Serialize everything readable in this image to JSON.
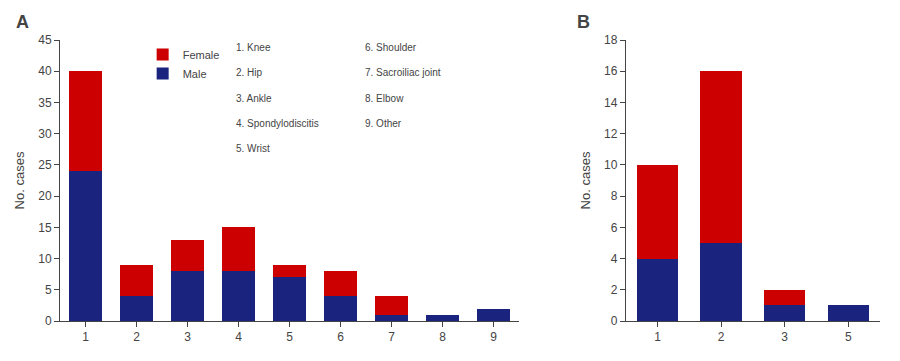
{
  "chart_data": [
    {
      "type": "bar",
      "stacked": true,
      "title": "A",
      "ylabel": "No. cases",
      "categories": [
        1,
        2,
        3,
        4,
        5,
        6,
        7,
        8,
        9
      ],
      "series": [
        {
          "name": "Male",
          "color": "#1a237e",
          "values": [
            24,
            4,
            8,
            8,
            7,
            4,
            1,
            1,
            2
          ]
        },
        {
          "name": "Female",
          "color": "#cc0000",
          "values": [
            16,
            5,
            5,
            7,
            2,
            4,
            3,
            0,
            0
          ]
        }
      ],
      "ylim": [
        0,
        45
      ],
      "yticks": [
        0,
        5,
        10,
        15,
        20,
        25,
        30,
        35,
        40,
        45
      ],
      "grid": false,
      "legend": "upper left",
      "annotations": [
        [
          "1. Knee",
          "2. Hip",
          "3. Ankle",
          "4. Spondylodiscitis",
          "5. Wrist"
        ],
        [
          "6. Shoulder",
          "7. Sacroiliac joint",
          "8. Elbow",
          "9. Other"
        ]
      ]
    },
    {
      "type": "bar",
      "stacked": true,
      "title": "B",
      "ylabel": "No. cases",
      "categories": [
        1,
        2,
        3,
        5
      ],
      "series": [
        {
          "name": "Male",
          "color": "#1a237e",
          "values": [
            4,
            5,
            1,
            1
          ]
        },
        {
          "name": "Female",
          "color": "#cc0000",
          "values": [
            6,
            11,
            1,
            0
          ]
        }
      ],
      "ylim": [
        0,
        18
      ],
      "yticks": [
        0,
        2,
        4,
        6,
        8,
        10,
        12,
        14,
        16,
        18
      ],
      "grid": false
    }
  ]
}
